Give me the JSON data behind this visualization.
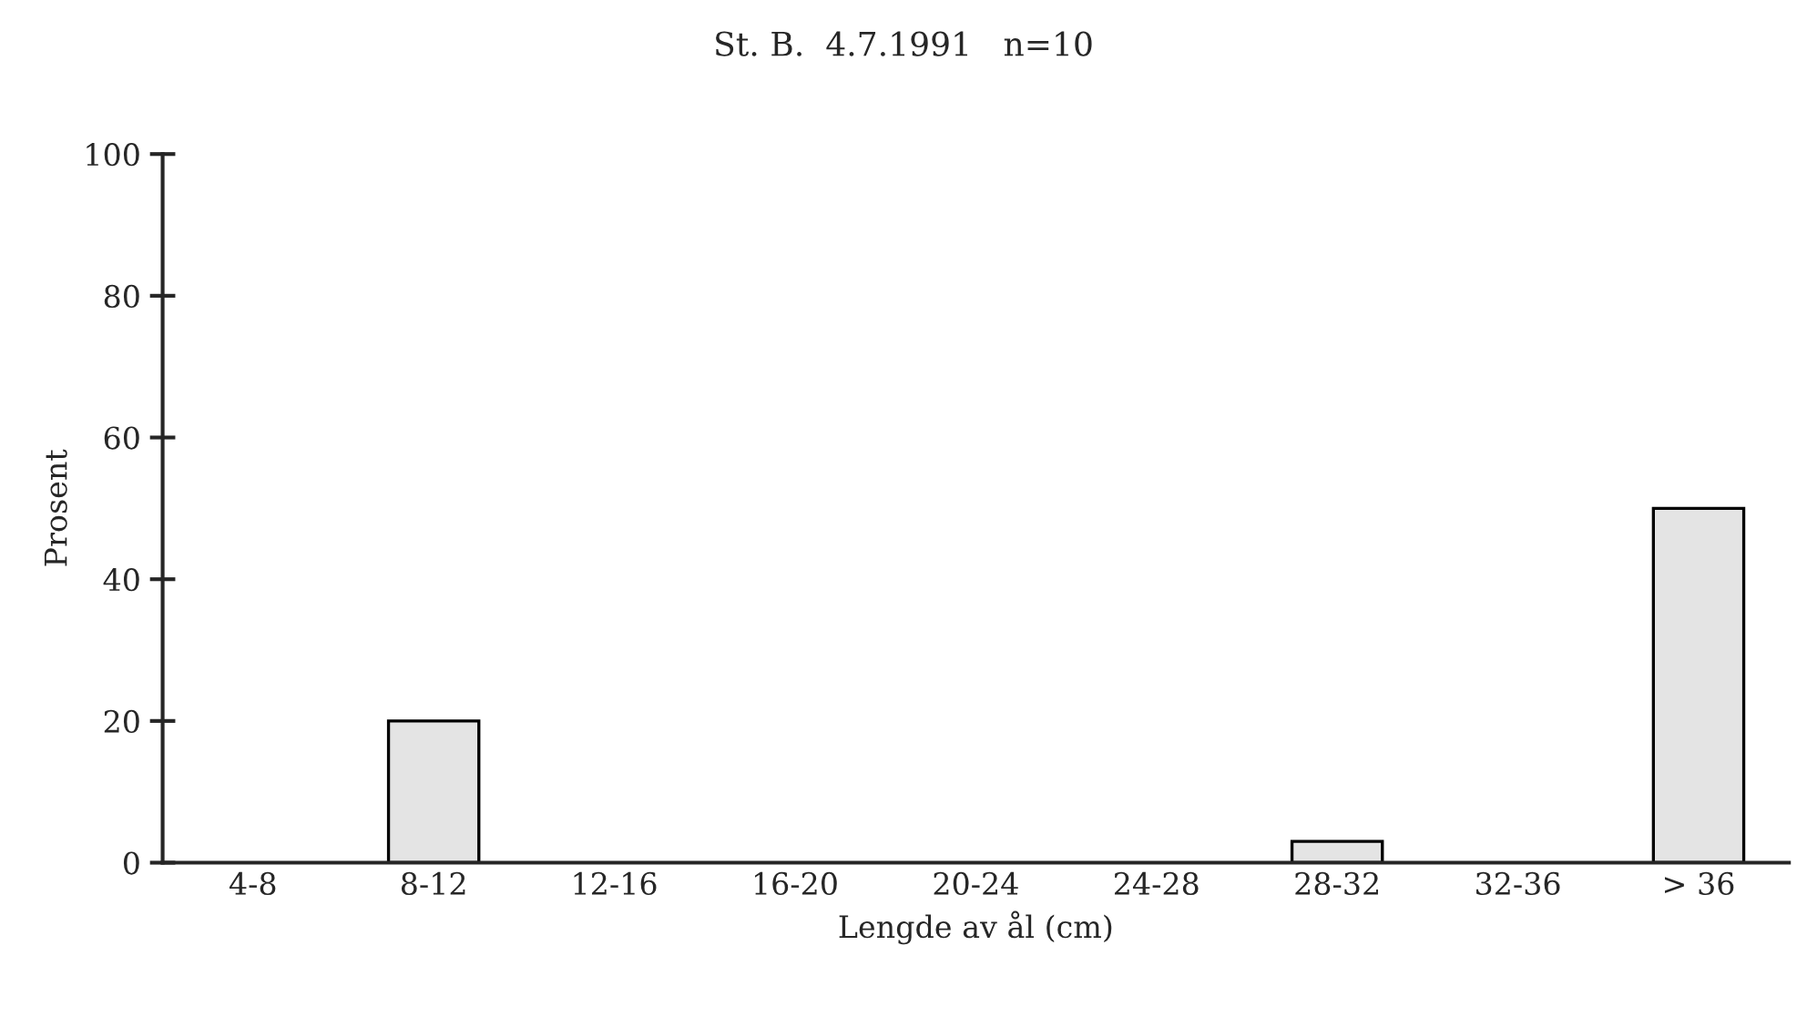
{
  "chart_data": {
    "type": "bar",
    "title": "St. B.  4.7.1991   n=10",
    "xlabel": "Lengde av ål (cm)",
    "ylabel": "Prosent",
    "categories": [
      "4-8",
      "8-12",
      "12-16",
      "16-20",
      "20-24",
      "24-28",
      "28-32",
      "32-36",
      "> 36"
    ],
    "values": [
      0,
      20,
      0,
      0,
      0,
      0,
      3,
      0,
      50
    ],
    "color": "#e4e4e4",
    "ylim": [
      0,
      100
    ],
    "yticks": [
      0,
      20,
      40,
      60,
      80,
      100
    ],
    "grid": false,
    "legend": false
  }
}
